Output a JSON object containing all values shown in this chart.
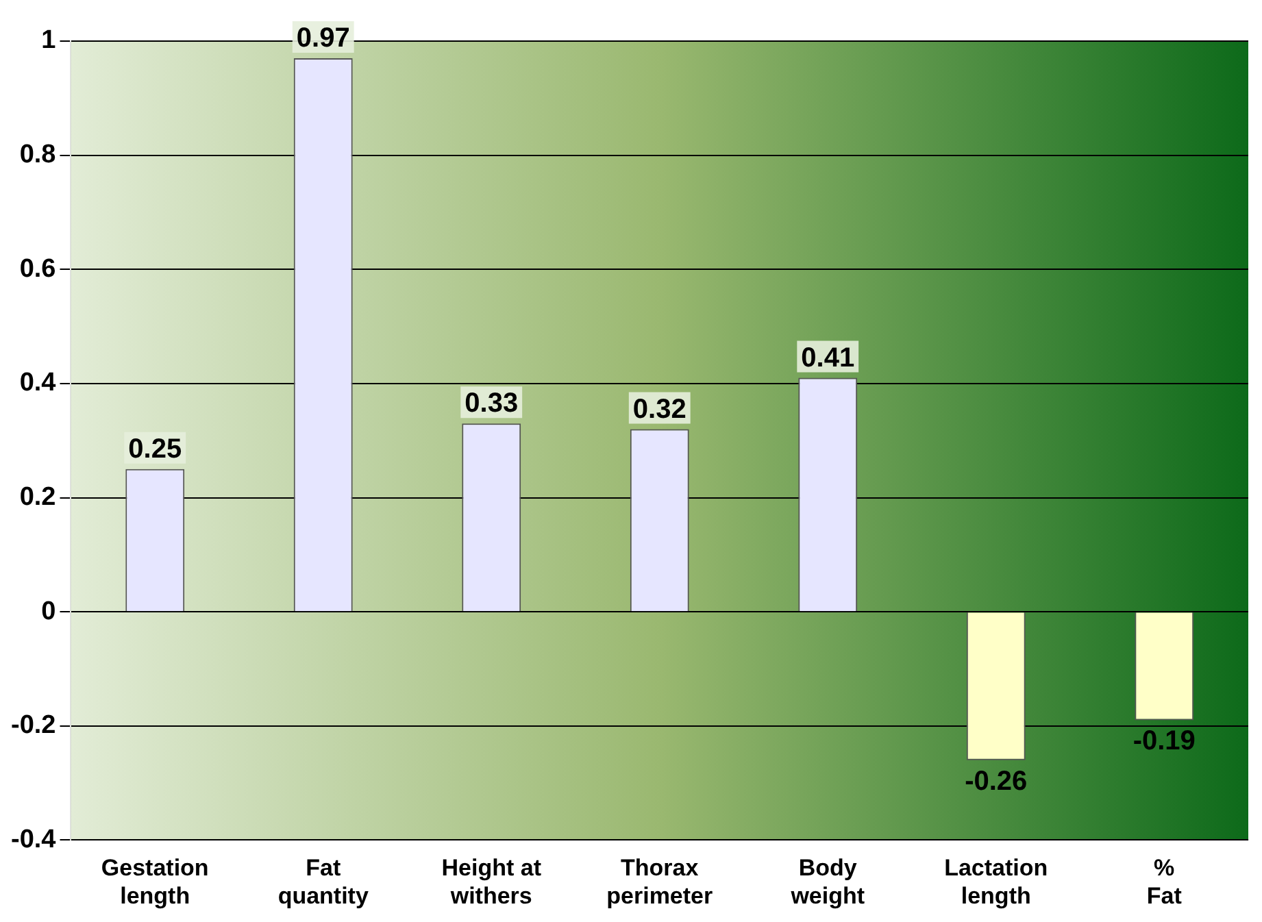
{
  "chart_data": {
    "type": "bar",
    "categories": [
      "Gestation length",
      "Fat quantity",
      "Height at withers",
      "Thorax perimeter",
      "Body weight",
      "Lactation length",
      "% Fat"
    ],
    "values": [
      0.25,
      0.97,
      0.33,
      0.32,
      0.41,
      -0.26,
      -0.19
    ],
    "colors": [
      "#e6e6ff",
      "#e6e6ff",
      "#e6e6ff",
      "#e6e6ff",
      "#e6e6ff",
      "#ffffc8",
      "#ffffc8"
    ],
    "ylim": [
      -0.4,
      1
    ],
    "yticks": [
      -0.4,
      -0.2,
      0,
      0.2,
      0.4,
      0.6,
      0.8,
      1
    ],
    "grid": "y",
    "data_labels": true,
    "legend": false
  }
}
